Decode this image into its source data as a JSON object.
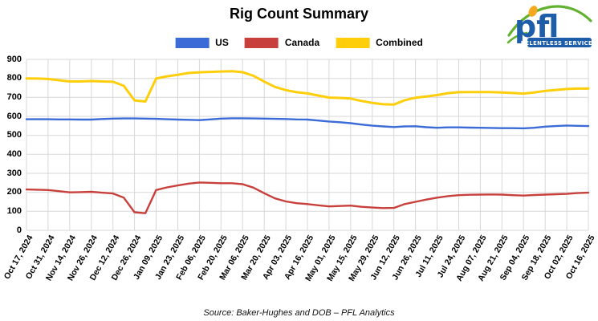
{
  "title": "Rig Count Summary",
  "source": "Source: Baker-Hughes and DOB – PFL Analytics",
  "logo": {
    "text": "pfl",
    "tagline_full": "RELENTLESS SERVICE™",
    "blue": "#1d5da9",
    "green": "#63b22f",
    "orange": "#f3a81d"
  },
  "chart_data": {
    "type": "line",
    "title": "Rig Count Summary",
    "xlabel": "",
    "ylabel": "",
    "ylim": [
      0,
      900
    ],
    "yticks": [
      0,
      100,
      200,
      300,
      400,
      500,
      600,
      700,
      800,
      900
    ],
    "grid": true,
    "grid_color": "#d7d7d7",
    "legend_position": "top",
    "points_per_label_interval": 2,
    "categories": [
      "Oct 17, 2024",
      "Oct 31, 2024",
      "Nov 14, 2024",
      "Nov 26, 2024",
      "Dec 12, 2024",
      "Dec 26, 2024",
      "Jan 09, 2025",
      "Jan 23, 2025",
      "Feb 06, 2025",
      "Feb 20, 2025",
      "Mar 06, 2025",
      "Mar 20, 2025",
      "Apr 03, 2025",
      "Apr 16, 2025",
      "May 01, 2025",
      "May 15, 2025",
      "May 29, 2025",
      "Jun 12, 2025",
      "Jun 26, 2025",
      "Jul 11, 2025",
      "Jul 24, 2025",
      "Aug 07, 2025",
      "Aug 21, 2025",
      "Sep 04, 2025",
      "Sep 18, 2025",
      "Oct 02, 2025",
      "Oct 16, 2025"
    ],
    "series": [
      {
        "name": "US",
        "color": "#3b6bd6",
        "stroke_width": 2.4,
        "values": [
          585,
          585,
          585,
          584,
          584,
          583,
          583,
          586,
          588,
          589,
          589,
          588,
          587,
          585,
          583,
          582,
          580,
          584,
          588,
          590,
          590,
          589,
          588,
          587,
          586,
          584,
          583,
          578,
          573,
          569,
          564,
          557,
          551,
          547,
          544,
          547,
          548,
          543,
          540,
          542,
          542,
          541,
          540,
          539,
          538,
          538,
          537,
          540,
          546,
          549,
          552,
          550,
          549
        ]
      },
      {
        "name": "Canada",
        "color": "#c8403c",
        "stroke_width": 2.4,
        "values": [
          215,
          214,
          212,
          206,
          200,
          201,
          203,
          198,
          194,
          172,
          95,
          90,
          212,
          226,
          236,
          246,
          252,
          250,
          248,
          248,
          243,
          225,
          195,
          168,
          152,
          143,
          138,
          132,
          126,
          128,
          130,
          124,
          120,
          117,
          118,
          138,
          150,
          162,
          172,
          180,
          185,
          187,
          188,
          189,
          188,
          185,
          183,
          186,
          188,
          190,
          192,
          196,
          198
        ]
      },
      {
        "name": "Combined",
        "color": "#fece0a",
        "stroke_width": 3,
        "values": [
          800,
          799,
          797,
          790,
          784,
          784,
          786,
          784,
          782,
          761,
          684,
          678,
          799,
          811,
          819,
          828,
          832,
          834,
          836,
          838,
          833,
          814,
          783,
          755,
          738,
          727,
          721,
          710,
          699,
          697,
          694,
          681,
          671,
          664,
          662,
          685,
          698,
          705,
          712,
          722,
          727,
          728,
          728,
          728,
          726,
          723,
          720,
          726,
          734,
          739,
          744,
          746,
          746
        ]
      }
    ]
  }
}
